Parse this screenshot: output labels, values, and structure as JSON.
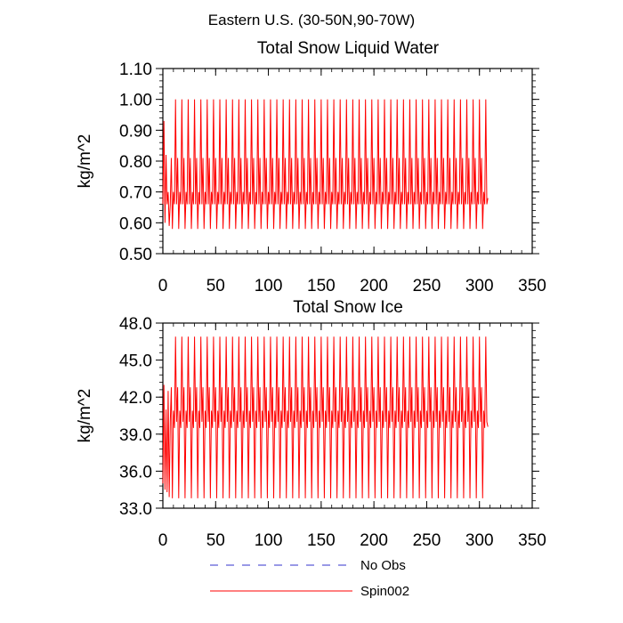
{
  "figure": {
    "suptitle": "Eastern U.S. (30-50N,90-70W)"
  },
  "chart_data": [
    {
      "type": "line",
      "title": "Total Snow Liquid Water",
      "xlabel": "",
      "ylabel": "kg/m^2",
      "xlim": [
        0,
        350
      ],
      "ylim": [
        0.5,
        1.1
      ],
      "xticks": [
        0,
        50,
        100,
        150,
        200,
        250,
        300,
        350
      ],
      "xtick_labels": [
        "0",
        "50",
        "100",
        "150",
        "200",
        "250",
        "300",
        "350"
      ],
      "yticks": [
        0.5,
        0.6,
        0.7,
        0.8,
        0.9,
        1.0,
        1.1
      ],
      "ytick_labels": [
        "0.50",
        "0.60",
        "0.70",
        "0.80",
        "0.90",
        "1.00",
        "1.10"
      ],
      "series": [
        {
          "name": "Spin002",
          "color": "#ff0000",
          "x_range": [
            0,
            308
          ],
          "period": 6,
          "pattern": [
            1.0,
            0.66,
            0.81,
            0.58,
            0.7,
            0.66
          ],
          "start_values": [
            0.66,
            0.93,
            0.6,
            0.82,
            0.66,
            0.7,
            0.59
          ],
          "end_value": 0.68
        }
      ],
      "grid": false
    },
    {
      "type": "line",
      "title": "Total Snow Ice",
      "xlabel": "",
      "ylabel": "kg/m^2",
      "xlim": [
        0,
        350
      ],
      "ylim": [
        33.0,
        48.0
      ],
      "xticks": [
        0,
        50,
        100,
        150,
        200,
        250,
        300,
        350
      ],
      "xtick_labels": [
        "0",
        "50",
        "100",
        "150",
        "200",
        "250",
        "300",
        "350"
      ],
      "yticks": [
        33.0,
        36.0,
        39.0,
        42.0,
        45.0,
        48.0
      ],
      "ytick_labels": [
        "33.0",
        "36.0",
        "39.0",
        "42.0",
        "45.0",
        "48.0"
      ],
      "series": [
        {
          "name": "Spin002",
          "color": "#ff0000",
          "x_range": [
            0,
            308
          ],
          "period": 6,
          "pattern": [
            46.9,
            40.0,
            42.8,
            33.8,
            40.9,
            39.5
          ],
          "start_values": [
            35.0,
            43.0,
            34.5,
            41.0,
            34.3,
            42.5,
            33.9
          ],
          "end_value": 39.6
        }
      ],
      "grid": false
    }
  ],
  "legend": {
    "placement": "bottom",
    "items": [
      {
        "label": "No Obs",
        "color": "#3333cc",
        "dash": "dashed"
      },
      {
        "label": "Spin002",
        "color": "#ff0000",
        "dash": "solid"
      }
    ]
  }
}
